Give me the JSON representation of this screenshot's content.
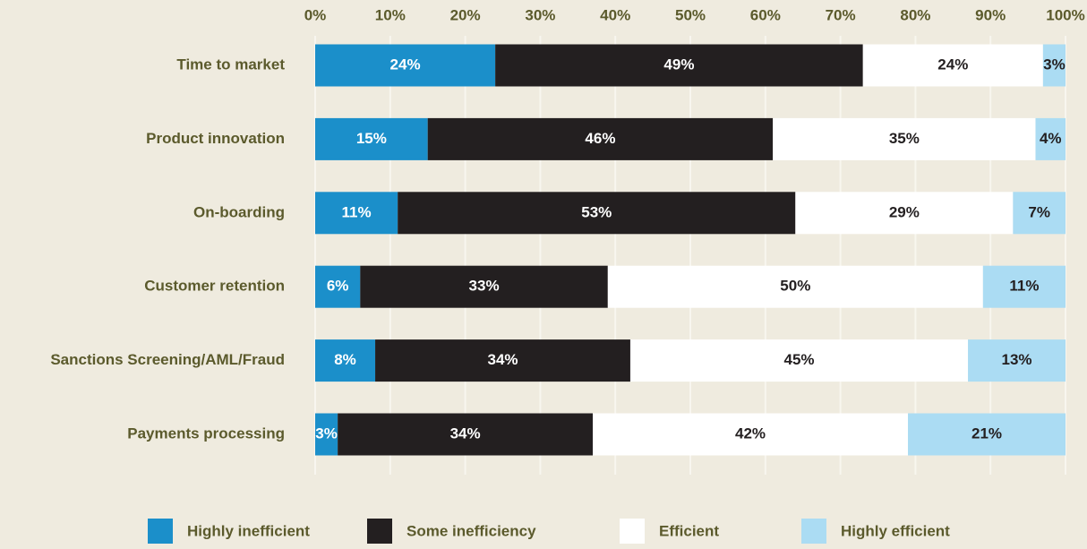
{
  "chart_data": {
    "type": "stacked-bar-horizontal",
    "categories": [
      "Time to market",
      "Product innovation",
      "On-boarding",
      "Customer retention",
      "Sanctions Screening/AML/Fraud",
      "Payments processing"
    ],
    "series": [
      {
        "name": "Highly inefficient",
        "color": "#1b8fca",
        "values": [
          24,
          15,
          11,
          6,
          8,
          3
        ],
        "value_labels": [
          "24%",
          "15%",
          "11%",
          "6%",
          "8%",
          "3%"
        ]
      },
      {
        "name": "Some inefficiency",
        "color": "#231f20",
        "values": [
          49,
          46,
          53,
          33,
          34,
          34
        ],
        "value_labels": [
          "49%",
          "46%",
          "53%",
          "33%",
          "34%",
          "34%"
        ]
      },
      {
        "name": "Efficient",
        "color": "#ffffff",
        "values": [
          24,
          35,
          29,
          50,
          45,
          42
        ],
        "value_labels": [
          "24%",
          "35%",
          "29%",
          "50%",
          "45%",
          "42%"
        ]
      },
      {
        "name": "Highly efficient",
        "color": "#abdcf3",
        "values": [
          3,
          4,
          7,
          11,
          13,
          21
        ],
        "value_labels": [
          "3%",
          "4%",
          "7%",
          "11%",
          "13%",
          "21%"
        ]
      }
    ],
    "xlim": [
      0,
      100
    ],
    "xticks": [
      {
        "value": 0,
        "label": "0%"
      },
      {
        "value": 10,
        "label": "10%"
      },
      {
        "value": 20,
        "label": "20%"
      },
      {
        "value": 30,
        "label": "30%"
      },
      {
        "value": 40,
        "label": "40%"
      },
      {
        "value": 50,
        "label": "50%"
      },
      {
        "value": 60,
        "label": "60%"
      },
      {
        "value": 70,
        "label": "70%"
      },
      {
        "value": 80,
        "label": "80%"
      },
      {
        "value": 90,
        "label": "90%"
      },
      {
        "value": 100,
        "label": "100%"
      }
    ],
    "grid": true,
    "legend": "bottom"
  }
}
